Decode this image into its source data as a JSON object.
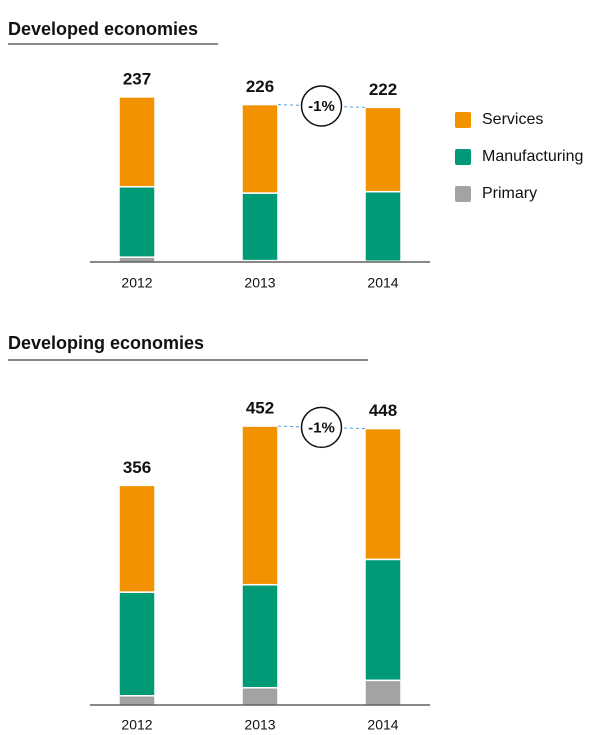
{
  "chart_data": [
    {
      "type": "stacked_bar",
      "title": "Developed economies",
      "categories": [
        "2012",
        "2013",
        "2014"
      ],
      "series": [
        {
          "name": "Primary",
          "color": "#a3a3a3",
          "values": [
            7,
            2,
            1
          ]
        },
        {
          "name": "Manufacturing",
          "color": "#009a77",
          "values": [
            101,
            97,
            100
          ]
        },
        {
          "name": "Services",
          "color": "#f39200",
          "values": [
            129,
            127,
            121
          ]
        }
      ],
      "totals": [
        237,
        226,
        222
      ],
      "annotation": "-1%",
      "ylim": [
        0,
        290
      ],
      "legend": "right"
    },
    {
      "type": "stacked_bar",
      "title": "Developing economies",
      "categories": [
        "2012",
        "2013",
        "2014"
      ],
      "series": [
        {
          "color": "#a3a3a3",
          "values": [
            15,
            28,
            40
          ]
        },
        {
          "color": "#009a77",
          "values": [
            168,
            167,
            196
          ]
        },
        {
          "color": "#f39200",
          "values": [
            173,
            257,
            212
          ]
        }
      ],
      "totals": [
        356,
        452,
        448
      ],
      "annotation": "-1%",
      "ylim": [
        0,
        530
      ]
    }
  ]
}
